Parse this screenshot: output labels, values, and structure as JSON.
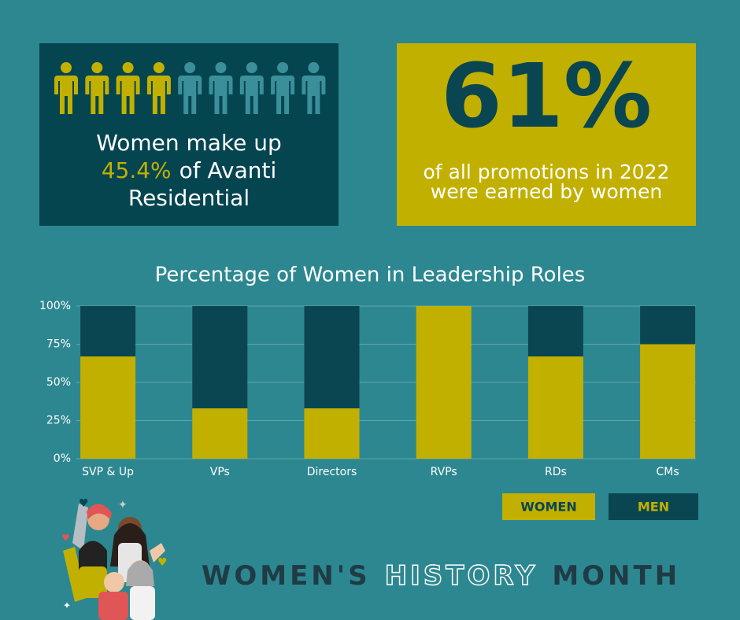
{
  "intro": {
    "line1": "Women make up",
    "highlight": "45.4%",
    "line2": "of Avanti",
    "line3": "Residential"
  },
  "promo": {
    "value": "61%",
    "line1": "of all promotions in 2022",
    "line2": "were earned by women"
  },
  "chart_data": {
    "type": "bar",
    "stacked": true,
    "title": "Percentage of Women in Leadership Roles",
    "categories": [
      "SVP & Up",
      "VPs",
      "Directors",
      "RVPs",
      "RDs",
      "CMs"
    ],
    "series": [
      {
        "name": "WOMEN",
        "color": "#c2b000",
        "values": [
          67,
          33,
          33,
          100,
          67,
          75
        ]
      },
      {
        "name": "MEN",
        "color": "#0a4651",
        "values": [
          33,
          67,
          67,
          0,
          33,
          25
        ]
      }
    ],
    "ylim": [
      0,
      100
    ],
    "yticks": [
      {
        "value": 0,
        "label": "0%"
      },
      {
        "value": 25,
        "label": "25%"
      },
      {
        "value": 50,
        "label": "50%"
      },
      {
        "value": 75,
        "label": "75%"
      },
      {
        "value": 100,
        "label": "100%"
      }
    ],
    "grid": true,
    "legend": "bottom-right"
  },
  "footer": {
    "part1": "WOMEN'S",
    "part2": "HISTORY",
    "part3": "MONTH"
  }
}
